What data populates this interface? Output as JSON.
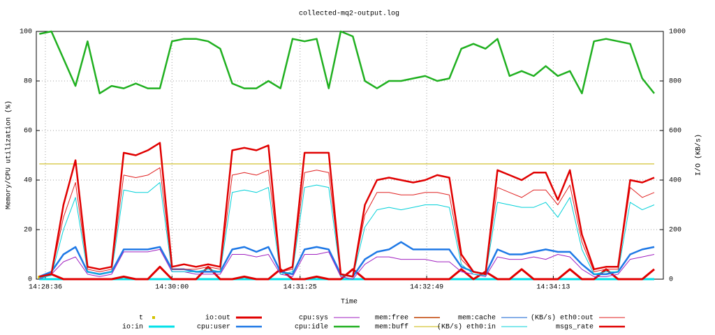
{
  "chart_data": {
    "type": "line",
    "title": "collected-mq2-output.log",
    "x_label": "Time",
    "y_label": "Memory/CPU utilization (%)",
    "y2_label": "I/O (KB/s)",
    "grid": true,
    "xlim": [
      52110,
      52526
    ],
    "xticks": [
      {
        "value": 52116,
        "label": "14:28:36"
      },
      {
        "value": 52200,
        "label": "14:30:00"
      },
      {
        "value": 52285,
        "label": "14:31:25"
      },
      {
        "value": 52369,
        "label": "14:32:49"
      },
      {
        "value": 52453,
        "label": "14:34:13"
      }
    ],
    "ylim": [
      0,
      100
    ],
    "yticks": [
      0,
      20,
      40,
      60,
      80,
      100
    ],
    "y2lim": [
      0,
      1000
    ],
    "y2ticks": [
      0,
      200,
      400,
      600,
      800,
      1000
    ],
    "x": [
      52112,
      52120,
      52128,
      52136,
      52144,
      52152,
      52160,
      52168,
      52176,
      52184,
      52192,
      52200,
      52208,
      52216,
      52224,
      52232,
      52240,
      52248,
      52256,
      52264,
      52272,
      52280,
      52288,
      52296,
      52304,
      52312,
      52320,
      52328,
      52336,
      52344,
      52352,
      52360,
      52368,
      52376,
      52384,
      52392,
      52400,
      52408,
      52416,
      52424,
      52432,
      52440,
      52448,
      52456,
      52464,
      52472,
      52480,
      52488,
      52496,
      52504,
      52512,
      52520
    ],
    "series": [
      {
        "name": "t",
        "color": "#d4c200",
        "width": 4,
        "marker": true,
        "values": [
          1,
          null,
          null,
          null,
          null,
          null,
          null,
          null,
          null,
          null,
          null,
          null,
          null,
          null,
          null,
          null,
          null,
          null,
          null,
          null,
          null,
          null,
          null,
          null,
          null,
          null,
          null,
          null,
          null,
          null,
          null,
          null,
          null,
          null,
          null,
          null,
          null,
          null,
          null,
          null,
          null,
          null,
          null,
          null,
          null,
          null,
          null,
          null,
          null,
          null,
          null,
          null
        ]
      },
      {
        "name": "io:in",
        "color": "#00e0e8",
        "width": 3,
        "axis": "y2",
        "values": [
          0,
          0,
          0,
          0,
          0,
          0,
          0,
          0,
          0,
          0,
          0,
          0,
          0,
          0,
          0,
          0,
          0,
          0,
          0,
          0,
          0,
          0,
          0,
          0,
          0,
          0,
          0,
          0,
          0,
          0,
          0,
          0,
          0,
          0,
          0,
          0,
          0,
          0,
          0,
          0,
          0,
          0,
          0,
          0,
          0,
          0,
          0,
          0,
          0,
          0,
          0,
          0
        ]
      },
      {
        "name": "io:out",
        "color": "#e00000",
        "width": 3,
        "axis": "y2",
        "values": [
          10,
          20,
          0,
          0,
          0,
          0,
          0,
          10,
          0,
          0,
          50,
          0,
          0,
          0,
          50,
          0,
          0,
          10,
          0,
          0,
          40,
          0,
          0,
          10,
          0,
          0,
          40,
          0,
          0,
          0,
          0,
          0,
          0,
          0,
          0,
          40,
          0,
          30,
          0,
          0,
          40,
          0,
          0,
          0,
          40,
          0,
          0,
          40,
          0,
          0,
          0,
          40
        ]
      },
      {
        "name": "cpu:user",
        "color": "#1e78e6",
        "width": 2.5,
        "values": [
          1,
          3,
          10,
          13,
          3,
          2,
          3,
          12,
          12,
          12,
          13,
          4,
          4,
          3,
          3,
          3,
          12,
          13,
          11,
          13,
          3,
          2,
          12,
          13,
          12,
          2,
          1,
          8,
          11,
          12,
          15,
          12,
          12,
          12,
          12,
          5,
          3,
          2,
          12,
          10,
          10,
          11,
          12,
          11,
          11,
          6,
          2,
          2,
          3,
          10,
          12,
          13
        ]
      },
      {
        "name": "cpu:sys",
        "color": "#a020c0",
        "width": 1,
        "values": [
          0,
          2,
          7,
          9,
          2,
          1,
          2,
          11,
          11,
          11,
          12,
          3,
          3,
          2,
          2,
          2,
          10,
          10,
          9,
          10,
          2,
          1,
          10,
          10,
          11,
          1,
          0,
          6,
          9,
          9,
          8,
          8,
          8,
          7,
          7,
          3,
          2,
          1,
          9,
          8,
          8,
          9,
          8,
          10,
          9,
          4,
          1,
          1,
          2,
          8,
          9,
          10
        ]
      },
      {
        "name": "cpu:idle",
        "color": "#20b020",
        "width": 2.5,
        "values": [
          99,
          100,
          89,
          78,
          96,
          75,
          78,
          77,
          79,
          77,
          77,
          96,
          97,
          97,
          96,
          93,
          79,
          77,
          77,
          80,
          77,
          97,
          96,
          97,
          77,
          100,
          98,
          80,
          77,
          80,
          80,
          81,
          82,
          80,
          81,
          93,
          95,
          93,
          97,
          82,
          84,
          82,
          86,
          82,
          84,
          75,
          96,
          97,
          96,
          95,
          81,
          75
        ]
      },
      {
        "name": "mem:free",
        "color": "#c04000",
        "width": 1.5,
        "values": [
          null,
          null,
          null,
          null,
          null,
          null,
          null,
          null,
          null,
          null,
          null,
          null,
          null,
          null,
          null,
          null,
          null,
          null,
          null,
          null,
          null,
          null,
          null,
          null,
          null,
          null,
          null,
          null,
          null,
          null,
          null,
          null,
          null,
          null,
          null,
          null,
          null,
          null,
          null,
          null,
          null,
          null,
          null,
          null,
          null,
          null,
          null,
          null,
          null,
          null,
          null,
          null
        ]
      },
      {
        "name": "mem:buff",
        "color": "#c8b400",
        "width": 1,
        "values": [
          46.5,
          46.5,
          46.5,
          46.5,
          46.5,
          46.5,
          46.5,
          46.5,
          46.5,
          46.5,
          46.5,
          46.5,
          46.5,
          46.5,
          46.5,
          46.5,
          46.5,
          46.5,
          46.5,
          46.5,
          46.5,
          46.5,
          46.5,
          46.5,
          46.5,
          46.5,
          46.5,
          46.5,
          46.5,
          46.5,
          46.5,
          46.5,
          46.5,
          46.5,
          46.5,
          46.5,
          46.5,
          46.5,
          46.5,
          46.5,
          46.5,
          46.5,
          46.5,
          46.5,
          46.5,
          46.5,
          46.5,
          46.5,
          46.5,
          46.5,
          46.5,
          46.5
        ]
      },
      {
        "name": "mem:cache",
        "color": "#1060d0",
        "width": 1,
        "values": [
          null,
          null,
          null,
          null,
          null,
          null,
          null,
          null,
          null,
          null,
          null,
          null,
          null,
          null,
          null,
          null,
          null,
          null,
          null,
          null,
          null,
          null,
          null,
          null,
          null,
          null,
          null,
          null,
          null,
          null,
          null,
          null,
          null,
          null,
          null,
          null,
          null,
          null,
          null,
          null,
          null,
          null,
          null,
          null,
          null,
          null,
          null,
          null,
          null,
          null,
          null,
          null
        ]
      },
      {
        "name": "(KB/s) eth0:in",
        "color": "#00d0d8",
        "width": 1,
        "axis": "y2",
        "values": [
          5,
          15,
          200,
          330,
          30,
          20,
          30,
          360,
          350,
          350,
          390,
          30,
          30,
          30,
          40,
          30,
          350,
          360,
          350,
          370,
          20,
          30,
          370,
          380,
          370,
          15,
          10,
          210,
          280,
          290,
          280,
          290,
          300,
          300,
          290,
          60,
          20,
          15,
          310,
          300,
          290,
          290,
          310,
          250,
          330,
          120,
          20,
          30,
          30,
          310,
          280,
          300
        ]
      },
      {
        "name": "(KB/s) eth0:out",
        "color": "#e02020",
        "width": 1,
        "axis": "y2",
        "values": [
          10,
          20,
          250,
          390,
          40,
          30,
          40,
          420,
          410,
          420,
          450,
          40,
          40,
          40,
          50,
          40,
          420,
          430,
          420,
          440,
          30,
          40,
          430,
          440,
          430,
          20,
          10,
          260,
          350,
          350,
          340,
          340,
          350,
          350,
          340,
          80,
          30,
          20,
          370,
          350,
          330,
          360,
          360,
          300,
          380,
          150,
          30,
          40,
          40,
          370,
          330,
          350
        ]
      },
      {
        "name": "msgs_rate",
        "color": "#e00000",
        "width": 2.5,
        "values": [
          1,
          2,
          30,
          48,
          5,
          4,
          5,
          51,
          50,
          52,
          55,
          5,
          6,
          5,
          6,
          5,
          52,
          53,
          52,
          54,
          3,
          5,
          51,
          51,
          51,
          2,
          1,
          30,
          40,
          41,
          40,
          39,
          40,
          42,
          41,
          10,
          3,
          2,
          44,
          42,
          40,
          43,
          43,
          32,
          44,
          18,
          4,
          5,
          5,
          40,
          39,
          41
        ]
      }
    ]
  }
}
